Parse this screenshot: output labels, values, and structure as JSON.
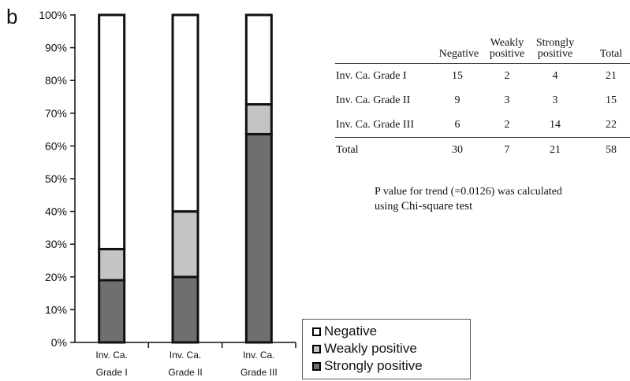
{
  "panel_letter": "b",
  "chart_data": {
    "type": "bar",
    "stacked": true,
    "orientation": "vertical",
    "categories": [
      [
        "Inv. Ca.",
        "Grade I"
      ],
      [
        "Inv. Ca.",
        "Grade II"
      ],
      [
        "Inv. Ca.",
        "Grade III"
      ]
    ],
    "series": [
      {
        "name": "Strongly positive",
        "color": "#6f6f6f",
        "values": [
          19,
          20,
          63.6
        ]
      },
      {
        "name": "Weakly positive",
        "color": "#c4c4c4",
        "values": [
          9.5,
          20,
          9.1
        ]
      },
      {
        "name": "Negative",
        "color": "#ffffff",
        "values": [
          71.5,
          60,
          27.3
        ]
      }
    ],
    "ylim": [
      0,
      100
    ],
    "yticks": [
      "0%",
      "10%",
      "20%",
      "30%",
      "40%",
      "50%",
      "60%",
      "70%",
      "80%",
      "90%",
      "100%"
    ],
    "legend_position": "bottom-right"
  },
  "legend": {
    "items": [
      {
        "label": "Negative",
        "color": "#ffffff"
      },
      {
        "label": "Weakly positive",
        "color": "#c4c4c4"
      },
      {
        "label": "Strongly positive",
        "color": "#6f6f6f"
      }
    ]
  },
  "table": {
    "headers": {
      "negative": "Negative",
      "weak_line1": "Weakly",
      "weak_line2": "positive",
      "strong_line1": "Strongly",
      "strong_line2": "positive",
      "total": "Total"
    },
    "rows": [
      {
        "label": "Inv. Ca. Grade I",
        "negative": "15",
        "weak": "2",
        "strong": "4",
        "total": "21"
      },
      {
        "label": "Inv. Ca. Grade II",
        "negative": "9",
        "weak": "3",
        "strong": "3",
        "total": "15"
      },
      {
        "label": "Inv. Ca. Grade III",
        "negative": "6",
        "weak": "2",
        "strong": "14",
        "total": "22"
      }
    ],
    "total_row": {
      "label": "Total",
      "negative": "30",
      "weak": "7",
      "strong": "21",
      "total": "58"
    }
  },
  "note": {
    "line1": "P value for trend (=0.0126) was calculated",
    "line2a": "using ",
    "line2b": "Chi-square test"
  }
}
